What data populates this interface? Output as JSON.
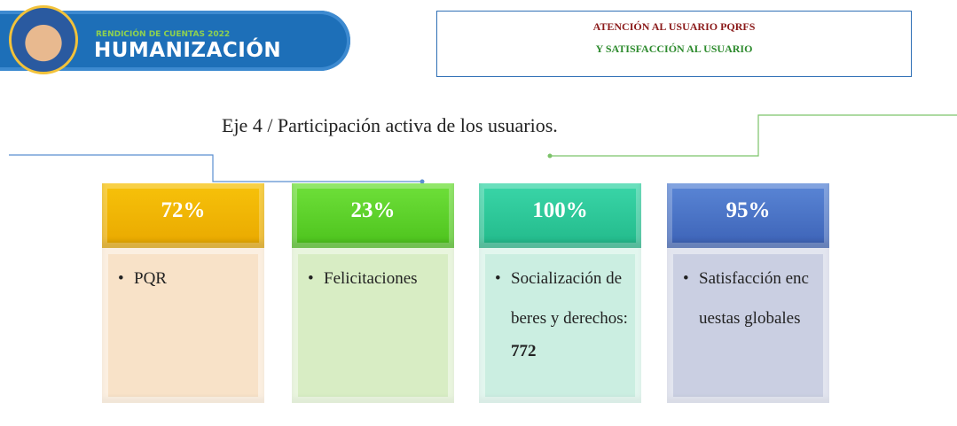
{
  "header": {
    "badge_small": "RENDICIÓN DE CUENTAS 2022",
    "badge_title": "HUMANIZACIÓN",
    "box_lines": [
      "ATENCIÓN AL USUARIO PQRFS",
      "Y SATISFACCIÓN AL USUARIO"
    ]
  },
  "subtitle": "Eje 4 / Participación activa de los usuarios.",
  "cards": [
    {
      "value": "72%",
      "text": "PQR"
    },
    {
      "value": "23%",
      "text": "Felicitaciones"
    },
    {
      "value": "100%",
      "text": "Socialización deberes y derechos:",
      "extra": "772"
    },
    {
      "value": "95%",
      "text": "Satisfacción encuestas globales"
    }
  ]
}
